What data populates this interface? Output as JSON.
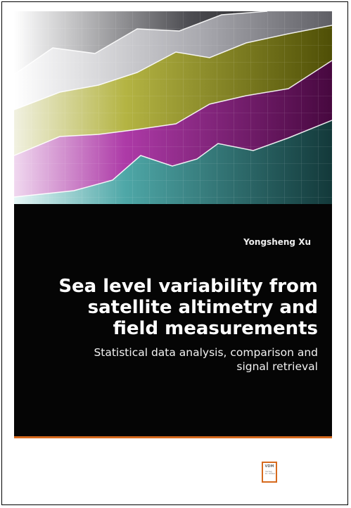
{
  "book": {
    "author": "Yongsheng Xu",
    "title_lines": [
      "Sea level variability from",
      "satellite altimetry and",
      "field measurements"
    ],
    "subtitle_lines": [
      "Statistical data analysis, comparison and",
      "signal retrieval"
    ]
  },
  "publisher": {
    "logo_text": "VDM",
    "logo_small_lines": [
      "Verlag",
      "Dr. Müller"
    ]
  },
  "colors": {
    "band_gray": "#a7a7ad",
    "band_olive": "#82820a",
    "band_magenta": "#7a1273",
    "band_teal": "#2a7678",
    "accent_orange": "#d66a1e"
  }
}
